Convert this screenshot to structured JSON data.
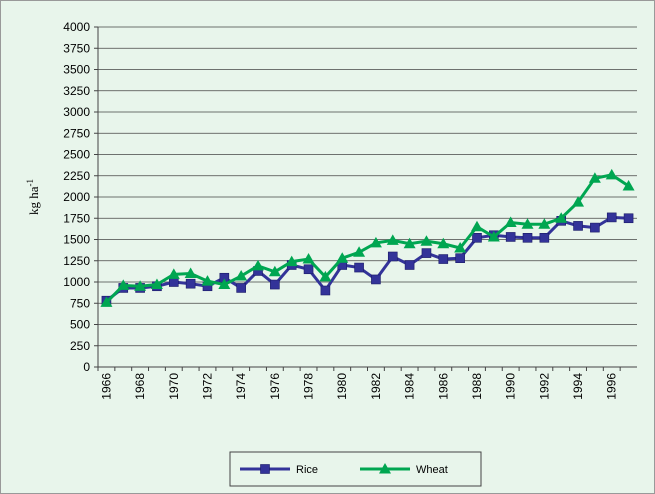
{
  "chart_data": {
    "type": "line",
    "y_label": "kg ha",
    "y_label_superscript": "-1",
    "categories": [
      "1966",
      null,
      "1968",
      null,
      "1970",
      null,
      "1972",
      null,
      "1974",
      null,
      "1976",
      null,
      "1978",
      null,
      "1980",
      null,
      "1982",
      null,
      "1984",
      null,
      "1986",
      null,
      "1988",
      null,
      "1990",
      null,
      "1992",
      null,
      "1994",
      null,
      "1996",
      null
    ],
    "series": [
      {
        "name": "Rice",
        "color": "#333399",
        "marker": "square",
        "values": [
          780,
          930,
          930,
          950,
          1000,
          980,
          950,
          1050,
          930,
          1130,
          970,
          1200,
          1150,
          900,
          1200,
          1170,
          1030,
          1300,
          1200,
          1340,
          1270,
          1280,
          1520,
          1550,
          1530,
          1520,
          1520,
          1720,
          1660,
          1640,
          1760,
          1750
        ]
      },
      {
        "name": "Wheat",
        "color": "#00a651",
        "marker": "triangle",
        "values": [
          760,
          960,
          950,
          970,
          1090,
          1100,
          1010,
          970,
          1070,
          1190,
          1120,
          1240,
          1270,
          1060,
          1280,
          1350,
          1460,
          1490,
          1450,
          1480,
          1450,
          1400,
          1650,
          1530,
          1700,
          1680,
          1680,
          1750,
          1940,
          2220,
          2260,
          2130
        ]
      }
    ],
    "ylim": [
      0,
      4000
    ],
    "yticks": [
      0,
      250,
      500,
      750,
      1000,
      1250,
      1500,
      1750,
      2000,
      2250,
      2500,
      2750,
      3000,
      3250,
      3500,
      3750,
      4000
    ],
    "grid": true,
    "legend": "bottom"
  }
}
